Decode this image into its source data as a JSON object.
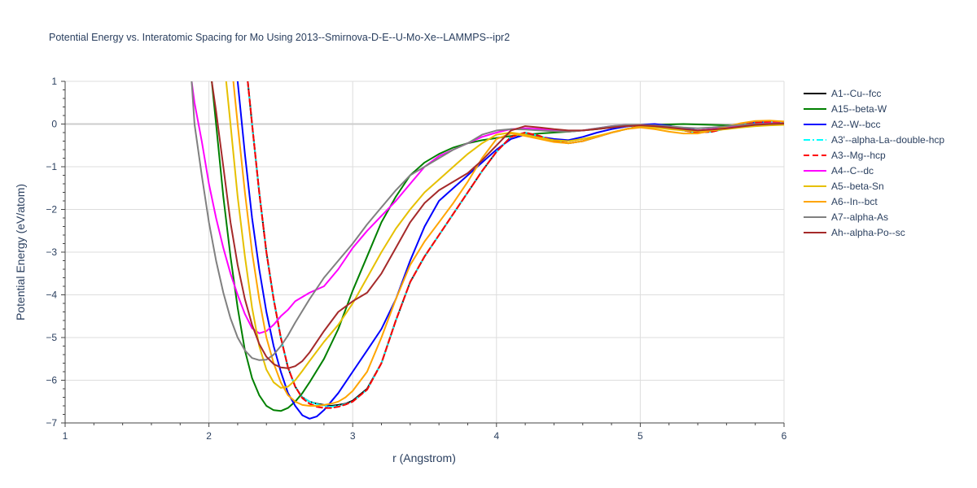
{
  "chart_data": {
    "type": "line",
    "title": "Potential Energy vs. Interatomic Spacing for Mo Using 2013--Smirnova-D-E--U-Mo-Xe--LAMMPS--ipr2",
    "xlabel": "r (Angstrom)",
    "ylabel": "Potential Energy (eV/atom)",
    "xlim": [
      1,
      6
    ],
    "ylim": [
      -7,
      1
    ],
    "xticks": [
      1,
      2,
      3,
      4,
      5,
      6
    ],
    "yticks": [
      1,
      0,
      -1,
      -2,
      -3,
      -4,
      -5,
      -6,
      -7
    ],
    "grid": true,
    "legend_position": "right",
    "series": [
      {
        "name": "A1--Cu--fcc",
        "color": "#000000",
        "dash": "solid",
        "x": [
          2.27,
          2.3,
          2.35,
          2.4,
          2.45,
          2.5,
          2.55,
          2.6,
          2.65,
          2.7,
          2.75,
          2.8,
          2.85,
          2.9,
          2.95,
          3.0,
          3.1,
          3.2,
          3.3,
          3.4,
          3.5,
          3.6,
          3.7,
          3.8,
          3.9,
          4.0,
          4.1,
          4.2,
          4.3,
          4.4,
          4.5,
          4.6,
          4.7,
          4.8,
          4.9,
          5.0,
          5.1,
          5.2,
          5.3,
          5.4,
          5.5,
          5.6,
          5.7,
          5.8,
          5.9,
          6.0
        ],
        "y": [
          1.0,
          0.0,
          -1.6,
          -3.0,
          -4.1,
          -5.0,
          -5.7,
          -6.15,
          -6.4,
          -6.5,
          -6.55,
          -6.58,
          -6.6,
          -6.58,
          -6.55,
          -6.48,
          -6.2,
          -5.6,
          -4.6,
          -3.7,
          -3.1,
          -2.6,
          -2.1,
          -1.6,
          -1.1,
          -0.65,
          -0.3,
          -0.2,
          -0.28,
          -0.4,
          -0.45,
          -0.4,
          -0.3,
          -0.2,
          -0.12,
          -0.05,
          -0.03,
          -0.08,
          -0.15,
          -0.2,
          -0.18,
          -0.1,
          -0.02,
          0.03,
          0.05,
          0.05
        ]
      },
      {
        "name": "A15--beta-W",
        "color": "#008000",
        "dash": "solid",
        "x": [
          2.02,
          2.05,
          2.1,
          2.15,
          2.2,
          2.25,
          2.3,
          2.35,
          2.4,
          2.45,
          2.5,
          2.55,
          2.6,
          2.65,
          2.7,
          2.8,
          2.9,
          3.0,
          3.1,
          3.2,
          3.3,
          3.4,
          3.5,
          3.6,
          3.7,
          3.8,
          3.9,
          4.0,
          4.1,
          4.2,
          4.3,
          4.4,
          4.5,
          4.6,
          4.7,
          4.8,
          4.9,
          5.0,
          5.1,
          5.2,
          5.3,
          5.4,
          5.5,
          5.6,
          5.7,
          5.8,
          5.9,
          6.0
        ],
        "y": [
          1.0,
          0.0,
          -1.7,
          -3.1,
          -4.3,
          -5.3,
          -5.95,
          -6.35,
          -6.6,
          -6.7,
          -6.72,
          -6.65,
          -6.5,
          -6.3,
          -6.05,
          -5.5,
          -4.8,
          -3.9,
          -3.1,
          -2.3,
          -1.7,
          -1.2,
          -0.9,
          -0.7,
          -0.55,
          -0.45,
          -0.38,
          -0.33,
          -0.28,
          -0.25,
          -0.22,
          -0.2,
          -0.18,
          -0.15,
          -0.12,
          -0.08,
          -0.05,
          -0.03,
          -0.02,
          -0.01,
          0.0,
          -0.01,
          -0.02,
          -0.03,
          -0.03,
          -0.03,
          -0.02,
          -0.01
        ]
      },
      {
        "name": "A2--W--bcc",
        "color": "#0000ff",
        "dash": "solid",
        "x": [
          2.2,
          2.25,
          2.3,
          2.35,
          2.4,
          2.45,
          2.5,
          2.55,
          2.6,
          2.65,
          2.7,
          2.75,
          2.8,
          2.85,
          2.9,
          2.95,
          3.0,
          3.1,
          3.2,
          3.3,
          3.4,
          3.5,
          3.6,
          3.7,
          3.8,
          3.9,
          4.0,
          4.1,
          4.2,
          4.3,
          4.4,
          4.5,
          4.6,
          4.7,
          4.8,
          4.9,
          5.0,
          5.1,
          5.2,
          5.3,
          5.4,
          5.5,
          5.6,
          5.7,
          5.8,
          5.9,
          6.0
        ],
        "y": [
          1.0,
          -0.7,
          -2.2,
          -3.4,
          -4.4,
          -5.2,
          -5.8,
          -6.3,
          -6.6,
          -6.82,
          -6.9,
          -6.85,
          -6.7,
          -6.5,
          -6.3,
          -6.05,
          -5.8,
          -5.3,
          -4.8,
          -4.1,
          -3.2,
          -2.4,
          -1.8,
          -1.5,
          -1.2,
          -0.9,
          -0.6,
          -0.35,
          -0.25,
          -0.3,
          -0.35,
          -0.38,
          -0.3,
          -0.2,
          -0.12,
          -0.06,
          -0.02,
          0.0,
          -0.04,
          -0.1,
          -0.15,
          -0.12,
          -0.06,
          0.0,
          0.04,
          0.06,
          0.05
        ]
      },
      {
        "name": "A3'--alpha-La--double-hcp",
        "color": "#00ffff",
        "dash": "dashdot",
        "x": [
          2.27,
          2.3,
          2.35,
          2.4,
          2.45,
          2.5,
          2.55,
          2.6,
          2.65,
          2.7,
          2.75,
          2.8,
          2.85,
          2.9,
          2.95,
          3.0,
          3.1,
          3.2,
          3.3,
          3.4,
          3.5,
          3.6,
          3.7,
          3.8,
          3.9,
          4.0,
          4.1,
          4.2,
          4.3,
          4.4,
          4.5,
          4.6,
          4.7,
          4.8,
          4.9,
          5.0,
          5.1,
          5.2,
          5.3,
          5.4,
          5.5,
          5.6,
          5.7,
          5.8,
          5.9,
          6.0
        ],
        "y": [
          1.0,
          0.0,
          -1.6,
          -3.0,
          -4.1,
          -5.0,
          -5.7,
          -6.15,
          -6.4,
          -6.5,
          -6.56,
          -6.6,
          -6.62,
          -6.6,
          -6.56,
          -6.5,
          -6.22,
          -5.6,
          -4.6,
          -3.7,
          -3.1,
          -2.6,
          -2.1,
          -1.6,
          -1.1,
          -0.65,
          -0.3,
          -0.2,
          -0.28,
          -0.4,
          -0.45,
          -0.4,
          -0.3,
          -0.2,
          -0.12,
          -0.05,
          -0.03,
          -0.08,
          -0.15,
          -0.2,
          -0.18,
          -0.1,
          -0.02,
          0.03,
          0.05,
          0.05
        ]
      },
      {
        "name": "A3--Mg--hcp",
        "color": "#ff0000",
        "dash": "dash",
        "x": [
          2.27,
          2.3,
          2.35,
          2.4,
          2.45,
          2.5,
          2.55,
          2.6,
          2.65,
          2.7,
          2.75,
          2.8,
          2.85,
          2.9,
          2.95,
          3.0,
          3.1,
          3.2,
          3.3,
          3.4,
          3.5,
          3.6,
          3.7,
          3.8,
          3.9,
          4.0,
          4.1,
          4.2,
          4.3,
          4.4,
          4.5,
          4.6,
          4.7,
          4.8,
          4.9,
          5.0,
          5.1,
          5.2,
          5.3,
          5.4,
          5.5,
          5.6,
          5.7,
          5.8,
          5.9,
          6.0
        ],
        "y": [
          1.0,
          0.0,
          -1.6,
          -3.0,
          -4.1,
          -5.0,
          -5.7,
          -6.15,
          -6.42,
          -6.55,
          -6.62,
          -6.65,
          -6.65,
          -6.62,
          -6.57,
          -6.5,
          -6.22,
          -5.6,
          -4.6,
          -3.7,
          -3.1,
          -2.6,
          -2.1,
          -1.6,
          -1.1,
          -0.65,
          -0.3,
          -0.2,
          -0.28,
          -0.4,
          -0.45,
          -0.4,
          -0.3,
          -0.2,
          -0.12,
          -0.05,
          -0.03,
          -0.08,
          -0.15,
          -0.2,
          -0.18,
          -0.1,
          -0.02,
          0.03,
          0.05,
          0.05
        ]
      },
      {
        "name": "A4--C--dc",
        "color": "#ff00ff",
        "dash": "solid",
        "x": [
          1.88,
          1.9,
          1.95,
          2.0,
          2.05,
          2.1,
          2.15,
          2.2,
          2.25,
          2.3,
          2.35,
          2.4,
          2.45,
          2.5,
          2.55,
          2.6,
          2.7,
          2.8,
          2.9,
          3.0,
          3.1,
          3.2,
          3.3,
          3.4,
          3.5,
          3.6,
          3.7,
          3.8,
          3.9,
          4.0,
          4.1,
          4.2,
          4.3,
          4.4,
          4.5,
          4.6,
          4.7,
          4.8,
          4.9,
          5.0,
          5.1,
          5.2,
          5.3,
          5.4,
          5.5,
          5.6,
          5.7,
          5.8,
          5.9,
          6.0
        ],
        "y": [
          1.0,
          0.5,
          -0.4,
          -1.4,
          -2.2,
          -2.9,
          -3.5,
          -4.0,
          -4.45,
          -4.78,
          -4.9,
          -4.85,
          -4.7,
          -4.5,
          -4.35,
          -4.15,
          -3.95,
          -3.8,
          -3.4,
          -2.9,
          -2.5,
          -2.15,
          -1.8,
          -1.4,
          -1.0,
          -0.75,
          -0.6,
          -0.45,
          -0.3,
          -0.2,
          -0.12,
          -0.1,
          -0.12,
          -0.15,
          -0.17,
          -0.15,
          -0.1,
          -0.05,
          -0.02,
          -0.02,
          -0.05,
          -0.1,
          -0.13,
          -0.15,
          -0.12,
          -0.08,
          -0.03,
          0.0,
          0.02,
          0.02
        ]
      },
      {
        "name": "A5--beta-Sn",
        "color": "#e6c000",
        "dash": "solid",
        "x": [
          2.12,
          2.15,
          2.2,
          2.25,
          2.3,
          2.35,
          2.4,
          2.45,
          2.5,
          2.55,
          2.6,
          2.65,
          2.7,
          2.8,
          2.9,
          3.0,
          3.1,
          3.2,
          3.3,
          3.4,
          3.5,
          3.6,
          3.7,
          3.8,
          3.9,
          4.0,
          4.1,
          4.2,
          4.3,
          4.4,
          4.5,
          4.6,
          4.7,
          4.8,
          4.9,
          5.0,
          5.1,
          5.2,
          5.3,
          5.4,
          5.5,
          5.6,
          5.7,
          5.8,
          5.9,
          6.0
        ],
        "y": [
          1.0,
          0.0,
          -1.7,
          -3.1,
          -4.3,
          -5.2,
          -5.75,
          -6.05,
          -6.18,
          -6.15,
          -6.0,
          -5.78,
          -5.55,
          -5.1,
          -4.7,
          -4.2,
          -3.6,
          -3.0,
          -2.45,
          -2.0,
          -1.6,
          -1.3,
          -1.0,
          -0.7,
          -0.45,
          -0.25,
          -0.2,
          -0.25,
          -0.32,
          -0.38,
          -0.4,
          -0.35,
          -0.28,
          -0.2,
          -0.12,
          -0.06,
          -0.08,
          -0.12,
          -0.15,
          -0.17,
          -0.15,
          -0.12,
          -0.08,
          -0.05,
          -0.03,
          -0.02
        ]
      },
      {
        "name": "A6--In--bct",
        "color": "#ffa500",
        "dash": "solid",
        "x": [
          2.17,
          2.2,
          2.25,
          2.3,
          2.35,
          2.4,
          2.45,
          2.5,
          2.55,
          2.6,
          2.65,
          2.7,
          2.75,
          2.8,
          2.85,
          2.9,
          2.95,
          3.0,
          3.1,
          3.2,
          3.3,
          3.4,
          3.5,
          3.6,
          3.7,
          3.8,
          3.9,
          4.0,
          4.1,
          4.2,
          4.3,
          4.4,
          4.5,
          4.6,
          4.7,
          4.8,
          4.9,
          5.0,
          5.1,
          5.2,
          5.3,
          5.4,
          5.5,
          5.6,
          5.7,
          5.8,
          5.9,
          6.0
        ],
        "y": [
          1.0,
          0.0,
          -1.6,
          -3.0,
          -4.1,
          -5.0,
          -5.6,
          -6.05,
          -6.35,
          -6.5,
          -6.58,
          -6.6,
          -6.6,
          -6.58,
          -6.55,
          -6.5,
          -6.4,
          -6.25,
          -5.8,
          -5.0,
          -4.1,
          -3.3,
          -2.75,
          -2.3,
          -1.85,
          -1.35,
          -0.8,
          -0.35,
          -0.22,
          -0.28,
          -0.35,
          -0.42,
          -0.45,
          -0.4,
          -0.3,
          -0.2,
          -0.12,
          -0.08,
          -0.12,
          -0.18,
          -0.22,
          -0.22,
          -0.15,
          -0.06,
          0.02,
          0.07,
          0.08,
          0.06
        ]
      },
      {
        "name": "A7--alpha-As",
        "color": "#808080",
        "dash": "solid",
        "x": [
          1.88,
          1.9,
          1.95,
          2.0,
          2.05,
          2.1,
          2.15,
          2.2,
          2.25,
          2.3,
          2.35,
          2.4,
          2.45,
          2.5,
          2.55,
          2.6,
          2.7,
          2.8,
          2.9,
          3.0,
          3.1,
          3.2,
          3.3,
          3.4,
          3.5,
          3.6,
          3.7,
          3.8,
          3.9,
          4.0,
          4.1,
          4.2,
          4.3,
          4.4,
          4.5,
          4.6,
          4.7,
          4.8,
          4.9,
          5.0,
          5.1,
          5.2,
          5.3,
          5.4,
          5.5,
          5.6,
          5.7,
          5.8,
          5.9,
          6.0
        ],
        "y": [
          1.0,
          0.0,
          -1.2,
          -2.3,
          -3.2,
          -3.95,
          -4.55,
          -5.0,
          -5.3,
          -5.48,
          -5.53,
          -5.52,
          -5.4,
          -5.2,
          -4.95,
          -4.65,
          -4.1,
          -3.6,
          -3.2,
          -2.8,
          -2.35,
          -1.95,
          -1.55,
          -1.2,
          -1.0,
          -0.8,
          -0.6,
          -0.45,
          -0.25,
          -0.15,
          -0.12,
          -0.13,
          -0.15,
          -0.17,
          -0.18,
          -0.15,
          -0.1,
          -0.05,
          -0.02,
          -0.02,
          -0.03,
          -0.05,
          -0.08,
          -0.1,
          -0.08,
          -0.05,
          -0.02,
          0.0,
          0.01,
          0.02
        ]
      },
      {
        "name": "Ah--alpha-Po--sc",
        "color": "#a52a2a",
        "dash": "solid",
        "x": [
          2.02,
          2.05,
          2.1,
          2.15,
          2.2,
          2.25,
          2.3,
          2.35,
          2.4,
          2.45,
          2.5,
          2.55,
          2.6,
          2.65,
          2.7,
          2.8,
          2.9,
          3.0,
          3.1,
          3.2,
          3.3,
          3.4,
          3.5,
          3.6,
          3.7,
          3.8,
          3.9,
          4.0,
          4.1,
          4.2,
          4.3,
          4.4,
          4.5,
          4.6,
          4.7,
          4.8,
          4.9,
          5.0,
          5.1,
          5.2,
          5.3,
          5.4,
          5.5,
          5.6,
          5.7,
          5.8,
          5.9,
          6.0
        ],
        "y": [
          1.0,
          0.3,
          -1.0,
          -2.3,
          -3.3,
          -4.1,
          -4.7,
          -5.15,
          -5.45,
          -5.62,
          -5.7,
          -5.72,
          -5.67,
          -5.55,
          -5.35,
          -4.85,
          -4.4,
          -4.15,
          -3.95,
          -3.5,
          -2.9,
          -2.3,
          -1.85,
          -1.55,
          -1.35,
          -1.15,
          -0.85,
          -0.5,
          -0.15,
          -0.05,
          -0.08,
          -0.12,
          -0.15,
          -0.15,
          -0.12,
          -0.08,
          -0.05,
          -0.03,
          -0.05,
          -0.08,
          -0.12,
          -0.15,
          -0.13,
          -0.1,
          -0.06,
          -0.02,
          0.0,
          0.01
        ]
      }
    ]
  }
}
